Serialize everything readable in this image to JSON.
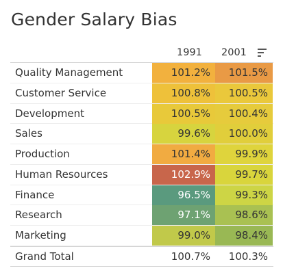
{
  "title": "Gender Salary Bias",
  "columns": [
    "1991",
    "2001"
  ],
  "sort_icon": "sort-descending-icon",
  "rows": [
    {
      "label": "Quality Management",
      "v1991": "101.2%",
      "v2001": "101.5%",
      "c1991": "#f2b13e",
      "c2001": "#e99a45"
    },
    {
      "label": "Customer Service",
      "v1991": "100.8%",
      "v2001": "100.5%",
      "c1991": "#eec13a",
      "c2001": "#eac83b"
    },
    {
      "label": "Development",
      "v1991": "100.5%",
      "v2001": "100.4%",
      "c1991": "#e8c93a",
      "c2001": "#e6cb3c"
    },
    {
      "label": "Sales",
      "v1991": "99.6%",
      "v2001": "100.0%",
      "c1991": "#d7d43e",
      "c2001": "#e1ce3b"
    },
    {
      "label": "Production",
      "v1991": "101.4%",
      "v2001": "99.9%",
      "c1991": "#f1ab41",
      "c2001": "#dfd43c"
    },
    {
      "label": "Human Resources",
      "v1991": "102.9%",
      "v2001": "99.7%",
      "c1991": "#c8664b",
      "c2001": "#d9d53c"
    },
    {
      "label": "Finance",
      "v1991": "96.5%",
      "v2001": "99.3%",
      "c1991": "#5a9a7e",
      "c2001": "#cdd545"
    },
    {
      "label": "Research",
      "v1991": "97.1%",
      "v2001": "98.6%",
      "c1991": "#6ea272",
      "c2001": "#a9c152"
    },
    {
      "label": "Marketing",
      "v1991": "99.0%",
      "v2001": "98.4%",
      "c1991": "#c1c94a",
      "c2001": "#99b854"
    }
  ],
  "total": {
    "label": "Grand Total",
    "v1991": "100.7%",
    "v2001": "100.3%"
  },
  "colors": {
    "text": "#333333",
    "text_on_dark": "#ffffff",
    "grid": "#d4d4d4"
  }
}
